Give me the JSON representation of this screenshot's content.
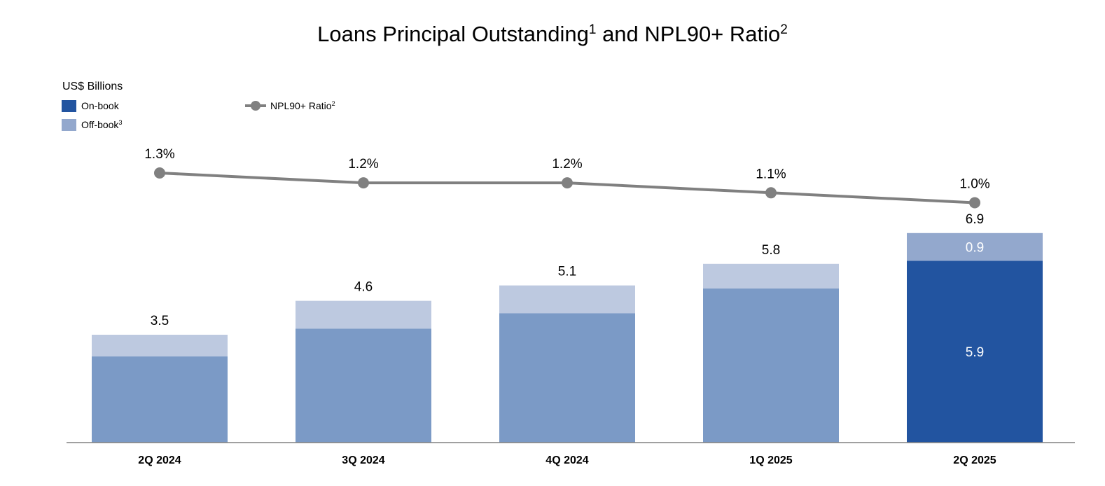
{
  "header": {
    "title_part1": "Loans Principal Outstanding",
    "title_sup1": "1",
    "title_part2": " and NPL90+ Ratio",
    "title_sup2": "2"
  },
  "unit_label": "US$ Billions",
  "legend": {
    "on_book": "On-book",
    "off_book": "Off-book",
    "off_book_sup": "3",
    "npl": "NPL90+ Ratio",
    "npl_sup": "2"
  },
  "colors": {
    "on_book": "#2254a0",
    "off_book": "#93a8cd",
    "on_book_muted": "#7b9ac6",
    "off_book_muted": "#bdc9e0",
    "npl_line": "#808080",
    "axis": "#808080"
  },
  "chart_data": {
    "type": "bar",
    "stacked": true,
    "categories": [
      "2Q 2024",
      "3Q 2024",
      "4Q 2024",
      "1Q 2025",
      "2Q 2025"
    ],
    "totals": [
      3.5,
      4.6,
      5.1,
      5.8,
      6.9
    ],
    "total_labels": [
      "3.5",
      "4.6",
      "5.1",
      "5.8",
      "6.9"
    ],
    "series": [
      {
        "name": "On-book",
        "values": [
          2.8,
          3.7,
          4.2,
          5.0,
          5.9
        ],
        "labels": [
          null,
          null,
          null,
          null,
          "5.9"
        ]
      },
      {
        "name": "Off-book",
        "values": [
          0.7,
          0.9,
          0.9,
          0.8,
          0.9
        ],
        "labels": [
          null,
          null,
          null,
          null,
          "0.9"
        ]
      }
    ],
    "line_series": {
      "name": "NPL90+ Ratio",
      "values": [
        1.3,
        1.2,
        1.2,
        1.1,
        1.0
      ],
      "labels": [
        "1.3%",
        "1.2%",
        "1.2%",
        "1.1%",
        "1.0%"
      ]
    },
    "highlighted_category": "2Q 2025",
    "ylabel": "US$ Billions",
    "ylim": [
      0,
      7.5
    ],
    "grid": false,
    "legend_position": "top-left"
  }
}
